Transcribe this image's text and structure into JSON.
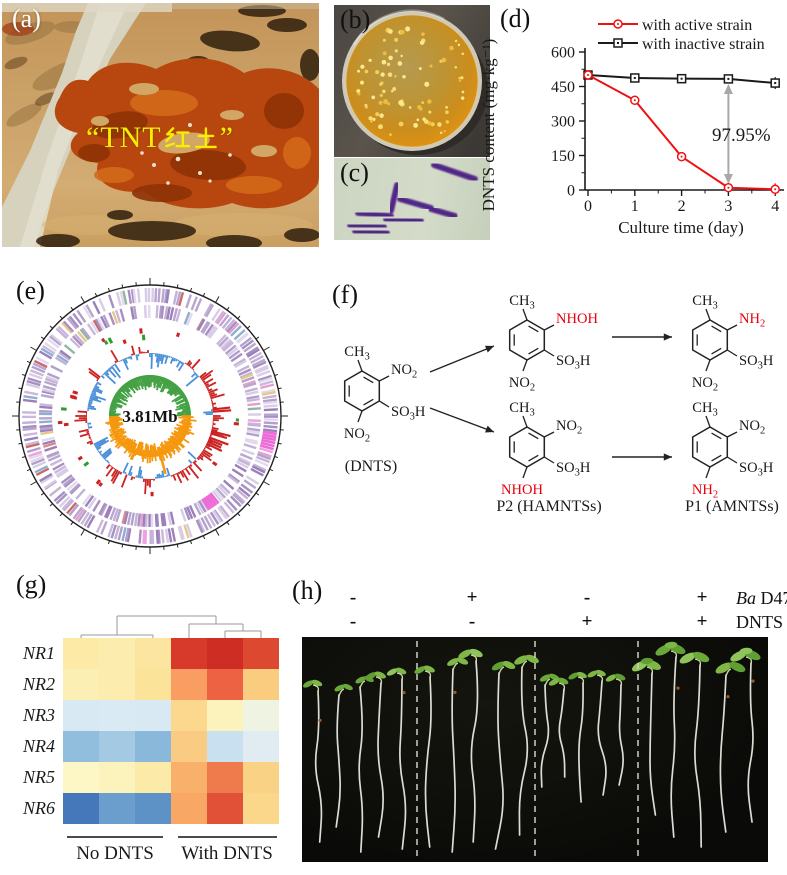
{
  "figure": {
    "panel_a": {
      "label": "(a)",
      "overlay_full": "“TNT红土”",
      "overlay_prefix": "“TNT",
      "overlay_cjk": "红土",
      "overlay_suffix": "”",
      "overlay_color": "#f8ef00"
    },
    "panel_b": {
      "label": "(b)"
    },
    "panel_c": {
      "label": "(c)"
    },
    "panel_d": {
      "label": "(d)"
    },
    "panel_e": {
      "label": "(e)",
      "center_label": "3.81Mb",
      "gc_plus_color": "#44a244",
      "gc_minus_color": "#f5980f",
      "skew_plus_color": "#cc2222",
      "skew_minus_color": "#4a90d8"
    },
    "panel_f": {
      "label": "(f)",
      "highlight_color": "#e8000d",
      "molecules": [
        {
          "name": "(DNTS)",
          "top": "CH3",
          "upper_right": "NO2",
          "lower_right": "SO3H",
          "bottom": "NO2",
          "red_groups": []
        },
        {
          "name": "",
          "top": "CH3",
          "upper_right": "NHOH",
          "lower_right": "SO3H",
          "bottom": "NO2",
          "red_groups": [
            "upper_right"
          ]
        },
        {
          "name": "",
          "top": "CH3",
          "upper_right": "NH2",
          "lower_right": "SO3H",
          "bottom": "NO2",
          "red_groups": [
            "upper_right"
          ]
        },
        {
          "name": "P2 (HAMNTSs)",
          "top": "CH3",
          "upper_right": "NO2",
          "lower_right": "SO3H",
          "bottom": "NHOH",
          "red_groups": [
            "bottom"
          ]
        },
        {
          "name": "P1 (AMNTSs)",
          "top": "CH3",
          "upper_right": "NO2",
          "lower_right": "SO3H",
          "bottom": "NH2",
          "red_groups": [
            "bottom"
          ]
        }
      ]
    },
    "panel_g": {
      "label": "(g)"
    },
    "panel_h": {
      "label": "(h)",
      "treatment_rows": [
        {
          "signs": [
            "-",
            "+",
            "-",
            "+"
          ],
          "name_italic": "Ba",
          "name_rest": " D47"
        },
        {
          "signs": [
            "-",
            "-",
            "+",
            "+"
          ],
          "name_italic": "",
          "name_rest": "DNTS"
        }
      ]
    }
  },
  "chart_data": [
    {
      "panel": "d",
      "type": "line",
      "x": [
        0,
        1,
        2,
        3,
        4
      ],
      "xticks": [
        0,
        1,
        2,
        3,
        4
      ],
      "yticks": [
        0,
        150,
        300,
        450,
        600
      ],
      "ylim": [
        0,
        600
      ],
      "xlabel": "Culture time (day)",
      "ylabel": "DNTS content (mg·kg⁻¹)",
      "grid": false,
      "legend_position": "top",
      "series": [
        {
          "name": "with active strain",
          "color": "#ee1111",
          "marker": "circle",
          "values": [
            500,
            390,
            145,
            10,
            3
          ]
        },
        {
          "name": "with inactive strain",
          "color": "#1a1a1a",
          "marker": "square",
          "values": [
            500,
            487,
            484,
            483,
            465
          ]
        }
      ],
      "annotation": {
        "text": "97.95%",
        "x": 3,
        "arrow_color": "#a8a8a8"
      }
    },
    {
      "panel": "g",
      "type": "heatmap",
      "rows": [
        "NR1",
        "NR2",
        "NR3",
        "NR4",
        "NR5",
        "NR6"
      ],
      "col_groups": [
        {
          "label": "No DNTS",
          "span": 3
        },
        {
          "label": "With DNTS",
          "span": 3
        }
      ],
      "dendrogram": true,
      "cell_colors": [
        [
          "#fceaa6",
          "#fcecae",
          "#fbe5a0",
          "#d7392a",
          "#ce2d24",
          "#dc4930"
        ],
        [
          "#fcefb4",
          "#fcecae",
          "#fbe39a",
          "#f99d62",
          "#ec6243",
          "#facc80"
        ],
        [
          "#d8e9f3",
          "#d9eaf4",
          "#d8e9f3",
          "#fbd88e",
          "#fcf2bc",
          "#eef3e2"
        ],
        [
          "#92bede",
          "#a3c9e3",
          "#8ab8da",
          "#facb82",
          "#c8e0ef",
          "#e0ecf2"
        ],
        [
          "#fdf7c6",
          "#fcf3bc",
          "#fbeaa8",
          "#f9b06b",
          "#ef7a4b",
          "#fad286"
        ],
        [
          "#4478ba",
          "#6c9ecd",
          "#5d92c6",
          "#f9a765",
          "#e15138",
          "#fbd78c"
        ]
      ]
    }
  ]
}
